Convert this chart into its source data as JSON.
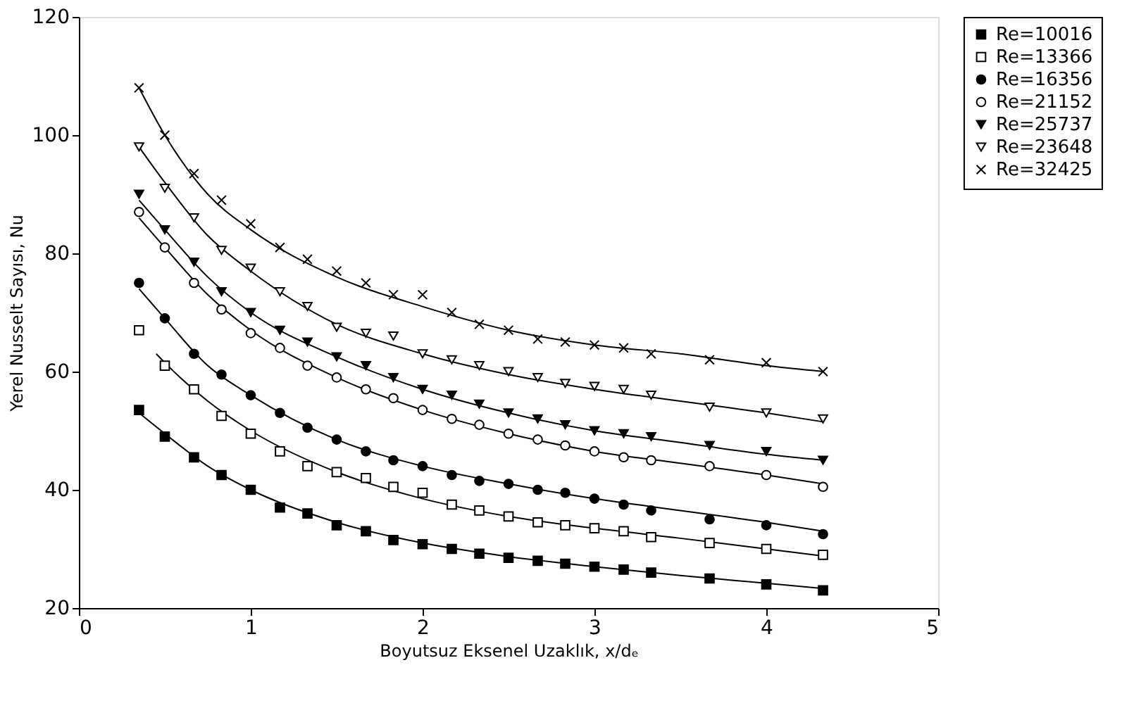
{
  "chart_data": {
    "type": "scatter",
    "xlabel": "Boyutsuz Eksenel Uzaklık, x/dₑ",
    "ylabel": "Yerel Nusselt Sayısı, Nu",
    "x": [
      0.35,
      0.5,
      0.67,
      0.83,
      1,
      1.17,
      1.33,
      1.5,
      1.67,
      1.83,
      2,
      2.17,
      2.33,
      2.5,
      2.67,
      2.83,
      3,
      3.17,
      3.33,
      3.67,
      4,
      4.33
    ],
    "series": [
      {
        "name": "Re=10016",
        "color": "#000000",
        "marker": "square",
        "values": [
          53.5,
          49,
          45.5,
          42.5,
          40,
          37,
          36,
          34,
          33,
          31.5,
          30.8,
          30,
          29.2,
          28.5,
          28,
          27.5,
          27,
          26.5,
          26,
          25,
          24,
          23
        ]
      },
      {
        "name": "Re=13366",
        "color": "#000000",
        "marker": "square",
        "values": [
          67,
          61,
          57,
          52.5,
          49.5,
          46.5,
          44,
          43,
          42,
          40.5,
          39.5,
          37.5,
          36.5,
          35.5,
          34.5,
          34,
          33.5,
          33,
          32,
          31,
          30,
          29
        ]
      },
      {
        "name": "Re=16356",
        "color": "#000000",
        "marker": "circle",
        "values": [
          75,
          69,
          63,
          59.5,
          56,
          53,
          50.5,
          48.5,
          46.5,
          45,
          44,
          42.5,
          41.5,
          41,
          40,
          39.5,
          38.5,
          37.5,
          36.5,
          35,
          34,
          32.5
        ]
      },
      {
        "name": "Re=21152",
        "color": "#000000",
        "marker": "circle",
        "values": [
          87,
          81,
          75,
          70.5,
          66.5,
          64,
          61,
          59,
          57,
          55.5,
          53.5,
          52,
          51,
          49.5,
          48.5,
          47.5,
          46.5,
          45.5,
          45,
          44,
          42.5,
          40.5
        ]
      },
      {
        "name": "Re=25737",
        "color": "#000000",
        "marker": "triangle",
        "values": [
          90,
          84,
          78.5,
          73.5,
          70,
          67,
          65,
          62.5,
          61,
          59,
          57,
          56,
          54.5,
          53,
          52,
          51,
          50,
          49.5,
          49,
          47.5,
          46.5,
          45
        ]
      },
      {
        "name": "Re=23648",
        "color": "#000000",
        "marker": "triangle",
        "values": [
          98,
          91,
          86,
          80.5,
          77.5,
          73.5,
          71,
          67.5,
          66.5,
          66,
          63,
          62,
          61,
          60,
          59,
          58,
          57.5,
          57,
          56,
          54,
          53,
          52
        ]
      },
      {
        "name": "Re=32425",
        "color": "#000000",
        "marker": "cross",
        "values": [
          108,
          100,
          93.5,
          89,
          85,
          81,
          79,
          77,
          75,
          73,
          73,
          70,
          68,
          67,
          65.5,
          65,
          64.5,
          64,
          63,
          62,
          61.5,
          60
        ]
      },
      {
        "type": "line",
        "color": "#000000",
        "x": [
          0.35,
          0.5,
          0.75,
          1,
          1.5,
          2,
          2.5,
          3,
          3.5,
          4,
          4.33
        ],
        "values": [
          53,
          49.5,
          44,
          40,
          34.5,
          31,
          28.7,
          27,
          25.5,
          24.2,
          23.3
        ]
      },
      {
        "type": "line",
        "color": "#000000",
        "x": [
          0.45,
          0.5,
          0.75,
          1,
          1.5,
          2,
          2.5,
          3,
          3.5,
          4,
          4.33
        ],
        "values": [
          63,
          61.5,
          55,
          50,
          43,
          38.5,
          35.5,
          33.5,
          31.8,
          30,
          28.8
        ]
      },
      {
        "type": "line",
        "color": "#000000",
        "x": [
          0.35,
          0.5,
          0.75,
          1,
          1.5,
          2,
          2.5,
          3,
          3.5,
          4,
          4.33
        ],
        "values": [
          74,
          69,
          61,
          56,
          48.5,
          44,
          41,
          38.5,
          36.5,
          34.5,
          33
        ]
      },
      {
        "type": "line",
        "color": "#000000",
        "x": [
          0.35,
          0.5,
          0.75,
          1,
          1.5,
          2,
          2.5,
          3,
          3.5,
          4,
          4.33
        ],
        "values": [
          86,
          81,
          73,
          67,
          59,
          53.5,
          49.5,
          46.5,
          44.5,
          42.5,
          41
        ]
      },
      {
        "type": "line",
        "color": "#000000",
        "x": [
          0.35,
          0.5,
          0.75,
          1,
          1.5,
          2,
          2.5,
          3,
          3.5,
          4,
          4.33
        ],
        "values": [
          89,
          84,
          76,
          70,
          62.5,
          57,
          53,
          50,
          48,
          46,
          45
        ]
      },
      {
        "type": "line",
        "color": "#000000",
        "x": [
          0.35,
          0.5,
          0.75,
          1,
          1.5,
          2,
          2.5,
          3,
          3.5,
          4,
          4.33
        ],
        "values": [
          98,
          92,
          83,
          77,
          68,
          63,
          59.5,
          57,
          55,
          53,
          51.5
        ]
      },
      {
        "type": "line",
        "color": "#000000",
        "x": [
          0.35,
          0.5,
          0.75,
          1,
          1.5,
          2,
          2.5,
          3,
          3.5,
          4,
          4.33
        ],
        "values": [
          108,
          100,
          90,
          84,
          76,
          71,
          67,
          64.5,
          63,
          61,
          60
        ]
      }
    ],
    "xlim": [
      0,
      5
    ],
    "xticks": [
      0,
      1,
      2,
      3,
      4,
      5
    ],
    "ylim": [
      20,
      120
    ],
    "yticks": [
      20,
      40,
      60,
      80,
      100,
      120
    ],
    "grid": false,
    "legend": "right"
  }
}
